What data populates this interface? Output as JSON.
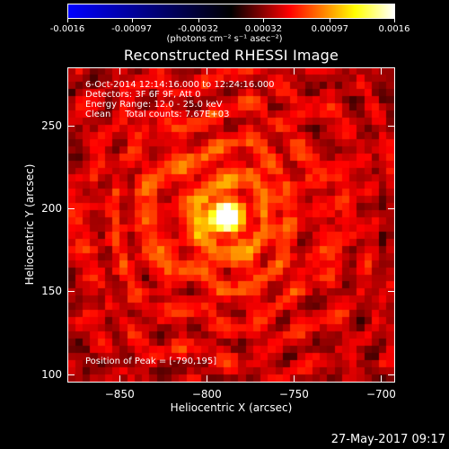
{
  "colorbar": {
    "tick_labels": [
      "-0.0016",
      "-0.00097",
      "-0.00032",
      "0.00032",
      "0.00097",
      "0.0016"
    ],
    "tick_values": [
      -0.0016,
      -0.00097,
      -0.00032,
      0.00032,
      0.00097,
      0.0016
    ],
    "units": "(photons cm⁻² s⁻¹ asec⁻²)",
    "colors": [
      "#0000ff",
      "#000000",
      "#ff0000",
      "#ffff00",
      "#ffffff"
    ]
  },
  "chart_data": {
    "type": "heatmap",
    "title": "Reconstructed RHESSI Image",
    "xlabel": "Heliocentric X (arcsec)",
    "ylabel": "Heliocentric Y (arcsec)",
    "xlim": [
      -880,
      -692
    ],
    "ylim": [
      95,
      285
    ],
    "x_ticks": [
      -850,
      -800,
      -750,
      -700
    ],
    "y_ticks": [
      100,
      150,
      200,
      250
    ],
    "x_tick_labels": [
      "−850",
      "−800",
      "−750",
      "−700"
    ],
    "y_tick_labels": [
      "100",
      "150",
      "200",
      "250"
    ],
    "peak": {
      "x": -790,
      "y": 195
    },
    "color_range": [
      -0.0016,
      0.0016
    ],
    "annotations": [
      "6-Oct-2014 12:14:16.000 to 12:24:16.000",
      "Detectors: 3F 6F 9F, Att 0",
      "Energy Range: 12.0 - 25.0 keV",
      "Clean     Total counts: 7.67E+03"
    ],
    "peak_label": "Position of Peak = [-790,195]"
  },
  "timestamp": "27-May-2017 09:17"
}
